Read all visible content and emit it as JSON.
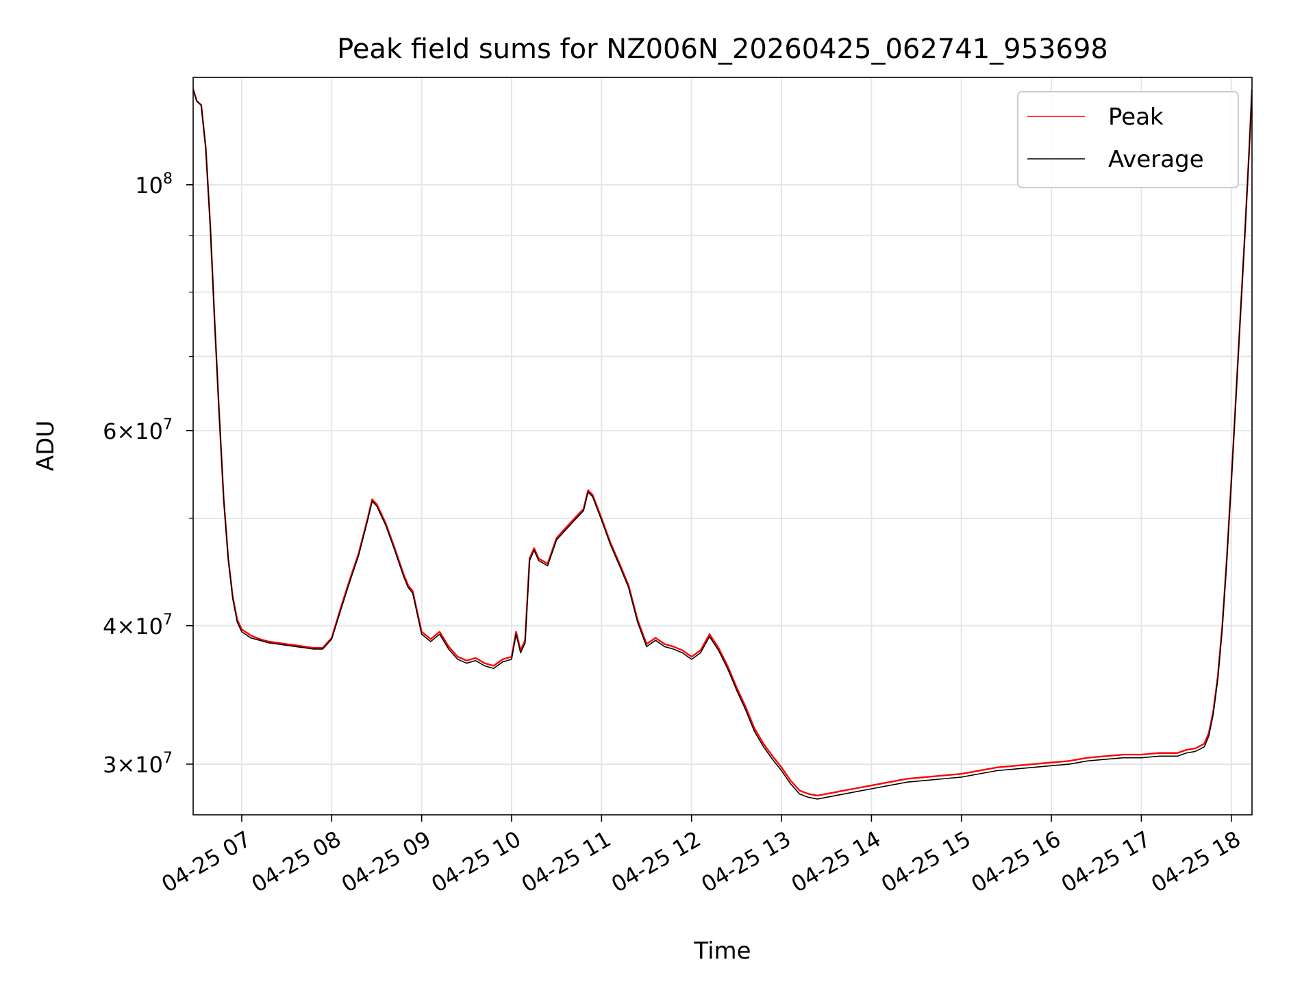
{
  "chart_data": {
    "type": "line",
    "title": "Peak field sums for NZ006N_20260425_062741_953698",
    "xlabel": "Time",
    "ylabel": "ADU",
    "yscale": "log",
    "ylim": [
      27000000,
      125000000
    ],
    "xlim": [
      6.46,
      18.23
    ],
    "grid": true,
    "legend_position": "top-right",
    "x_ticks": [
      {
        "value": 7,
        "label": "04-25 07"
      },
      {
        "value": 8,
        "label": "04-25 08"
      },
      {
        "value": 9,
        "label": "04-25 09"
      },
      {
        "value": 10,
        "label": "04-25 10"
      },
      {
        "value": 11,
        "label": "04-25 11"
      },
      {
        "value": 12,
        "label": "04-25 12"
      },
      {
        "value": 13,
        "label": "04-25 13"
      },
      {
        "value": 14,
        "label": "04-25 14"
      },
      {
        "value": 15,
        "label": "04-25 15"
      },
      {
        "value": 16,
        "label": "04-25 16"
      },
      {
        "value": 17,
        "label": "04-25 17"
      },
      {
        "value": 18,
        "label": "04-25 18"
      }
    ],
    "y_ticks": [
      {
        "value": 30000000,
        "base": "3×10",
        "exp": "7"
      },
      {
        "value": 40000000,
        "base": "4×10",
        "exp": "7"
      },
      {
        "value": 60000000,
        "base": "6×10",
        "exp": "7"
      },
      {
        "value": 100000000,
        "base": "10",
        "exp": "8"
      }
    ],
    "y_minor_ticks": [
      50000000,
      70000000,
      80000000,
      90000000
    ],
    "series": [
      {
        "name": "Peak",
        "color": "#ff0000",
        "x": [
          6.46,
          6.5,
          6.55,
          6.6,
          6.65,
          6.7,
          6.75,
          6.8,
          6.85,
          6.9,
          6.95,
          7.0,
          7.1,
          7.2,
          7.3,
          7.4,
          7.5,
          7.6,
          7.7,
          7.8,
          7.9,
          8.0,
          8.1,
          8.2,
          8.3,
          8.4,
          8.45,
          8.5,
          8.6,
          8.7,
          8.8,
          8.85,
          8.9,
          9.0,
          9.1,
          9.2,
          9.3,
          9.4,
          9.5,
          9.6,
          9.7,
          9.8,
          9.9,
          10.0,
          10.05,
          10.1,
          10.15,
          10.2,
          10.25,
          10.3,
          10.4,
          10.5,
          10.6,
          10.7,
          10.75,
          10.8,
          10.85,
          10.9,
          11.0,
          11.1,
          11.2,
          11.3,
          11.4,
          11.5,
          11.6,
          11.7,
          11.8,
          11.9,
          12.0,
          12.1,
          12.2,
          12.3,
          12.4,
          12.5,
          12.6,
          12.7,
          12.8,
          12.9,
          13.0,
          13.1,
          13.2,
          13.3,
          13.4,
          13.5,
          13.6,
          13.7,
          13.8,
          13.9,
          14.0,
          14.2,
          14.4,
          14.6,
          14.8,
          15.0,
          15.2,
          15.4,
          15.6,
          15.8,
          16.0,
          16.2,
          16.4,
          16.6,
          16.8,
          17.0,
          17.2,
          17.4,
          17.5,
          17.6,
          17.7,
          17.75,
          17.8,
          17.85,
          17.9,
          17.95,
          18.0,
          18.05,
          18.1,
          18.15,
          18.2,
          18.23
        ],
        "y": [
          122000000,
          119000000,
          118000000,
          108000000,
          92000000,
          75000000,
          62000000,
          52000000,
          46000000,
          42500000,
          40500000,
          39700000,
          39200000,
          38900000,
          38700000,
          38600000,
          38500000,
          38400000,
          38300000,
          38200000,
          38200000,
          39000000,
          41500000,
          44000000,
          46500000,
          50000000,
          52000000,
          51500000,
          49500000,
          47000000,
          44500000,
          43500000,
          43000000,
          39500000,
          38900000,
          39500000,
          38300000,
          37500000,
          37200000,
          37400000,
          37000000,
          36800000,
          37300000,
          37500000,
          39500000,
          38000000,
          38800000,
          46000000,
          47000000,
          46000000,
          45500000,
          48000000,
          49000000,
          50000000,
          50500000,
          51000000,
          53000000,
          52500000,
          50000000,
          47500000,
          45500000,
          43500000,
          40500000,
          38500000,
          39000000,
          38500000,
          38300000,
          38000000,
          37500000,
          38000000,
          39300000,
          38200000,
          36800000,
          35200000,
          33800000,
          32300000,
          31300000,
          30500000,
          29800000,
          29000000,
          28400000,
          28200000,
          28100000,
          28200000,
          28300000,
          28400000,
          28500000,
          28600000,
          28700000,
          28900000,
          29100000,
          29200000,
          29300000,
          29400000,
          29600000,
          29800000,
          29900000,
          30000000,
          30100000,
          30200000,
          30400000,
          30500000,
          30600000,
          30600000,
          30700000,
          30700000,
          30900000,
          31000000,
          31300000,
          32000000,
          33500000,
          36000000,
          40000000,
          46000000,
          54000000,
          64000000,
          76000000,
          90000000,
          108000000,
          122000000
        ]
      },
      {
        "name": "Average",
        "color": "#000000",
        "x": [
          6.46,
          6.5,
          6.55,
          6.6,
          6.65,
          6.7,
          6.75,
          6.8,
          6.85,
          6.9,
          6.95,
          7.0,
          7.1,
          7.2,
          7.3,
          7.4,
          7.5,
          7.6,
          7.7,
          7.8,
          7.9,
          8.0,
          8.1,
          8.2,
          8.3,
          8.4,
          8.45,
          8.5,
          8.6,
          8.7,
          8.8,
          8.85,
          8.9,
          9.0,
          9.1,
          9.2,
          9.3,
          9.4,
          9.5,
          9.6,
          9.7,
          9.8,
          9.9,
          10.0,
          10.05,
          10.1,
          10.15,
          10.2,
          10.25,
          10.3,
          10.4,
          10.5,
          10.6,
          10.7,
          10.75,
          10.8,
          10.85,
          10.9,
          11.0,
          11.1,
          11.2,
          11.3,
          11.4,
          11.5,
          11.6,
          11.7,
          11.8,
          11.9,
          12.0,
          12.1,
          12.2,
          12.3,
          12.4,
          12.5,
          12.6,
          12.7,
          12.8,
          12.9,
          13.0,
          13.1,
          13.2,
          13.3,
          13.4,
          13.5,
          13.6,
          13.7,
          13.8,
          13.9,
          14.0,
          14.2,
          14.4,
          14.6,
          14.8,
          15.0,
          15.2,
          15.4,
          15.6,
          15.8,
          16.0,
          16.2,
          16.4,
          16.6,
          16.8,
          17.0,
          17.2,
          17.4,
          17.5,
          17.6,
          17.7,
          17.75,
          17.8,
          17.85,
          17.9,
          17.95,
          18.0,
          18.05,
          18.1,
          18.15,
          18.2,
          18.23
        ],
        "y": [
          122000000,
          119000000,
          118000000,
          108000000,
          92000000,
          75000000,
          62000000,
          52000000,
          46000000,
          42300000,
          40300000,
          39500000,
          39000000,
          38800000,
          38600000,
          38500000,
          38400000,
          38300000,
          38200000,
          38100000,
          38100000,
          38900000,
          41300000,
          43800000,
          46300000,
          49800000,
          51800000,
          51300000,
          49300000,
          46800000,
          44300000,
          43300000,
          42800000,
          39300000,
          38700000,
          39300000,
          38100000,
          37300000,
          37000000,
          37200000,
          36800000,
          36600000,
          37100000,
          37300000,
          39300000,
          37800000,
          38600000,
          45800000,
          46800000,
          45800000,
          45300000,
          47800000,
          48800000,
          49800000,
          50300000,
          50800000,
          52800000,
          52300000,
          49800000,
          47300000,
          45300000,
          43300000,
          40300000,
          38300000,
          38800000,
          38300000,
          38100000,
          37800000,
          37300000,
          37800000,
          39100000,
          38000000,
          36600000,
          35000000,
          33600000,
          32100000,
          31100000,
          30300000,
          29600000,
          28800000,
          28200000,
          28000000,
          27900000,
          28000000,
          28100000,
          28200000,
          28300000,
          28400000,
          28500000,
          28700000,
          28900000,
          29000000,
          29100000,
          29200000,
          29400000,
          29600000,
          29700000,
          29800000,
          29900000,
          30000000,
          30200000,
          30300000,
          30400000,
          30400000,
          30500000,
          30500000,
          30700000,
          30800000,
          31100000,
          31800000,
          33300000,
          35800000,
          39800000,
          45800000,
          53800000,
          63800000,
          75800000,
          89800000,
          107800000,
          121800000
        ]
      }
    ]
  }
}
